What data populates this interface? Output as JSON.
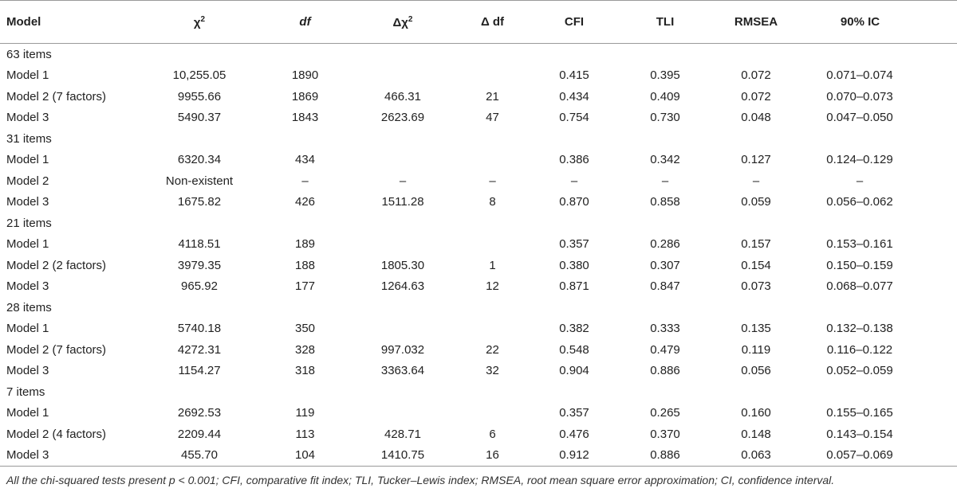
{
  "table": {
    "header": [
      {
        "text": "Model"
      },
      {
        "text": "χ",
        "sup": "2"
      },
      {
        "text": "df",
        "italic": true
      },
      {
        "text": "Δχ",
        "sup": "2"
      },
      {
        "text": "Δ df"
      },
      {
        "text": "CFI"
      },
      {
        "text": "TLI"
      },
      {
        "text": "RMSEA"
      },
      {
        "text": "90% IC"
      }
    ],
    "rows": [
      {
        "label": "63 items"
      },
      {
        "cells": [
          "Model 1",
          "10,255.05",
          "1890",
          null,
          null,
          "0.415",
          "0.395",
          "0.072",
          "0.071–0.074"
        ]
      },
      {
        "cells": [
          "Model 2 (7 factors)",
          "9955.66",
          "1869",
          "466.31",
          "21",
          "0.434",
          "0.409",
          "0.072",
          "0.070–0.073"
        ]
      },
      {
        "cells": [
          "Model 3",
          "5490.37",
          "1843",
          "2623.69",
          "47",
          "0.754",
          "0.730",
          "0.048",
          "0.047–0.050"
        ]
      },
      {
        "label": "31 items"
      },
      {
        "cells": [
          "Model 1",
          "6320.34",
          "434",
          null,
          null,
          "0.386",
          "0.342",
          "0.127",
          "0.124–0.129"
        ]
      },
      {
        "cells": [
          "Model 2",
          "Non-existent",
          "–",
          "–",
          "–",
          "–",
          "–",
          "–",
          "–"
        ]
      },
      {
        "cells": [
          "Model 3",
          "1675.82",
          "426",
          "1511.28",
          "8",
          "0.870",
          "0.858",
          "0.059",
          "0.056–0.062"
        ]
      },
      {
        "label": "21 items"
      },
      {
        "cells": [
          "Model 1",
          "4118.51",
          "189",
          null,
          null,
          "0.357",
          "0.286",
          "0.157",
          "0.153–0.161"
        ]
      },
      {
        "cells": [
          "Model 2 (2 factors)",
          "3979.35",
          "188",
          "1805.30",
          "1",
          "0.380",
          "0.307",
          "0.154",
          "0.150–0.159"
        ]
      },
      {
        "cells": [
          "Model 3",
          "965.92",
          "177",
          "1264.63",
          "12",
          "0.871",
          "0.847",
          "0.073",
          "0.068–0.077"
        ]
      },
      {
        "label": "28 items"
      },
      {
        "cells": [
          "Model 1",
          "5740.18",
          "350",
          null,
          null,
          "0.382",
          "0.333",
          "0.135",
          "0.132–0.138"
        ]
      },
      {
        "cells": [
          "Model 2 (7 factors)",
          "4272.31",
          "328",
          "997.032",
          "22",
          "0.548",
          "0.479",
          "0.119",
          "0.116–0.122"
        ]
      },
      {
        "cells": [
          "Model 3",
          "1154.27",
          "318",
          "3363.64",
          "32",
          "0.904",
          "0.886",
          "0.056",
          "0.052–0.059"
        ]
      },
      {
        "label": "7 items"
      },
      {
        "cells": [
          "Model 1",
          "2692.53",
          "119",
          null,
          null,
          "0.357",
          "0.265",
          "0.160",
          "0.155–0.165"
        ]
      },
      {
        "cells": [
          "Model 2 (4 factors)",
          "2209.44",
          "113",
          "428.71",
          "6",
          "0.476",
          "0.370",
          "0.148",
          "0.143–0.154"
        ]
      },
      {
        "cells": [
          "Model 3",
          "455.70",
          "104",
          "1410.75",
          "16",
          "0.912",
          "0.886",
          "0.063",
          "0.057–0.069"
        ]
      }
    ],
    "footnote": "All the chi-squared tests present p < 0.001; CFI, comparative fit index; TLI, Tucker–Lewis index; RMSEA, root mean square error approximation; CI, confidence interval."
  }
}
